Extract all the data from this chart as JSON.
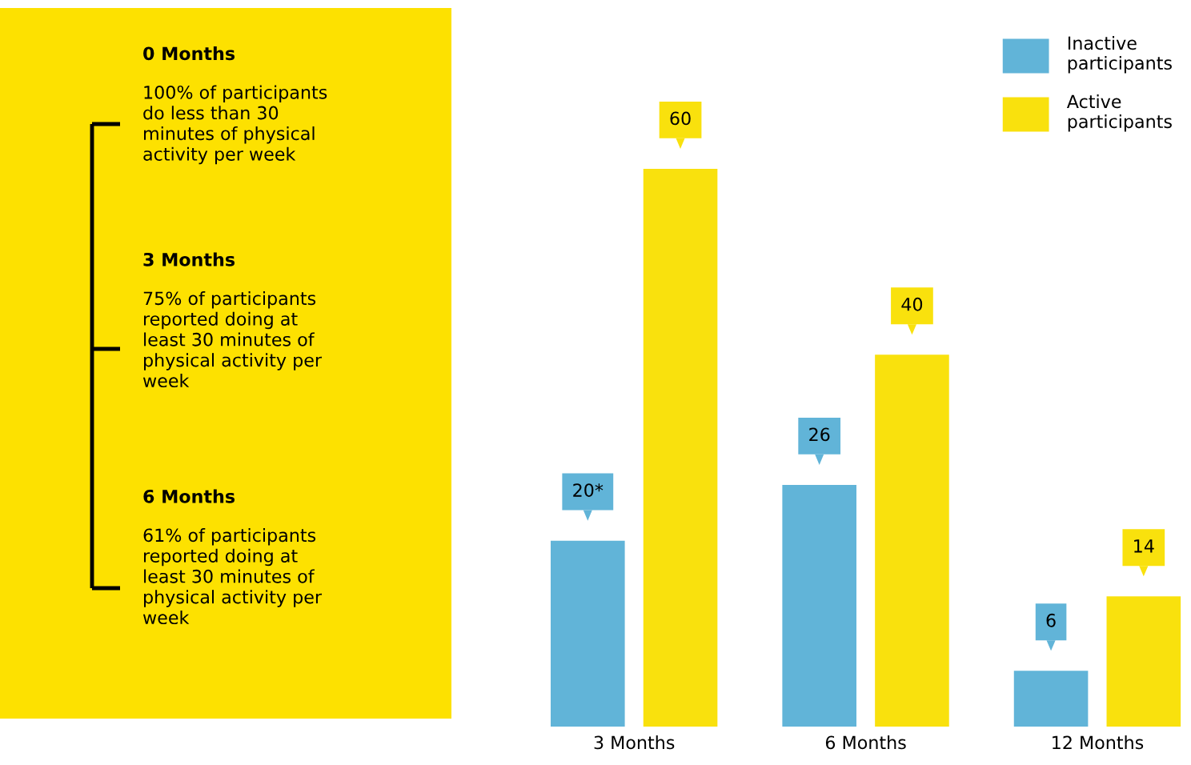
{
  "chart_data": [
    {
      "type": "other",
      "color": "#fde100",
      "annotations": [
        "0 Months",
        "100% of participants\ndo less than 30\nminutes of physical\nactivity per week",
        "3 Months",
        "75% of participants\nreported doing at\nleast 30 minutes of\nphysical activity per\nweek",
        "6 Months",
        "61% of participants\nreported doing at\nleast 30 minutes of\nphysical activity per\nweek"
      ]
    },
    {
      "type": "bar",
      "categories": [
        "3 Months",
        "6 Months",
        "12 Months"
      ],
      "legend": "top right",
      "series": [
        {
          "name": "Inactive participants",
          "color": "#61b4d8",
          "values": [
            20,
            26,
            6
          ],
          "value_labels": [
            "20*",
            "26",
            "6"
          ]
        },
        {
          "name": "Active participants",
          "color": "#f9e10d",
          "values": [
            60,
            40,
            14
          ],
          "value_labels": [
            "60",
            "40",
            "14"
          ]
        }
      ]
    }
  ]
}
